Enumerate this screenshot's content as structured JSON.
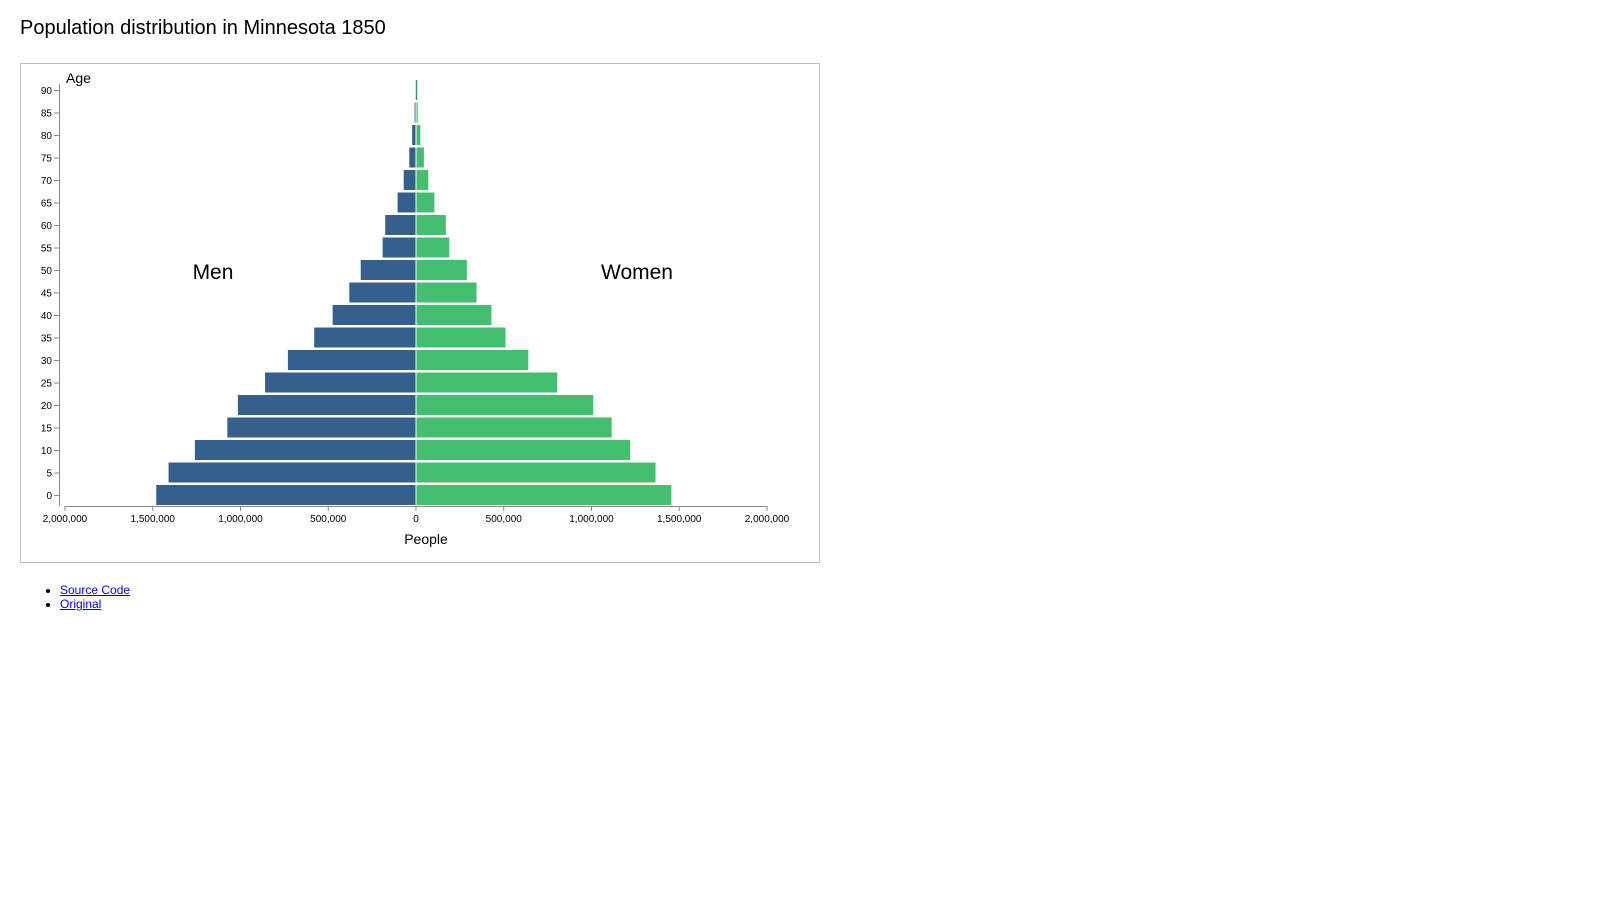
{
  "page": {
    "title": "Population distribution in Minnesota 1850"
  },
  "links": [
    {
      "label": "Source Code"
    },
    {
      "label": "Original"
    }
  ],
  "colors": {
    "men": "#355f8d",
    "women": "#44bf70"
  },
  "chart_data": {
    "type": "bar",
    "orientation": "horizontal",
    "layout": "population-pyramid",
    "title": "Population distribution in Minnesota 1850",
    "ylabel": "Age",
    "xlabel": "People",
    "group_labels": {
      "men": "Men",
      "women": "Women"
    },
    "x_ticks": [
      "2,000,000",
      "1,500,000",
      "1,000,000",
      "500,000",
      "0",
      "500,000",
      "1,000,000",
      "1,500,000",
      "2,000,000"
    ],
    "xlim": [
      -2000000,
      2000000
    ],
    "grid": false,
    "categories": [
      0,
      5,
      10,
      15,
      20,
      25,
      30,
      35,
      40,
      45,
      50,
      55,
      60,
      65,
      70,
      75,
      80,
      85,
      90
    ],
    "series": [
      {
        "name": "Men",
        "values": [
          1480000,
          1410000,
          1260000,
          1075000,
          1015000,
          860000,
          730000,
          580000,
          475000,
          380000,
          315000,
          190000,
          175000,
          105000,
          70000,
          38000,
          22000,
          8000,
          1000
        ]
      },
      {
        "name": "Women",
        "values": [
          1455000,
          1365000,
          1220000,
          1115000,
          1010000,
          805000,
          640000,
          510000,
          430000,
          345000,
          290000,
          190000,
          170000,
          105000,
          70000,
          45000,
          25000,
          10000,
          5000
        ]
      }
    ]
  }
}
